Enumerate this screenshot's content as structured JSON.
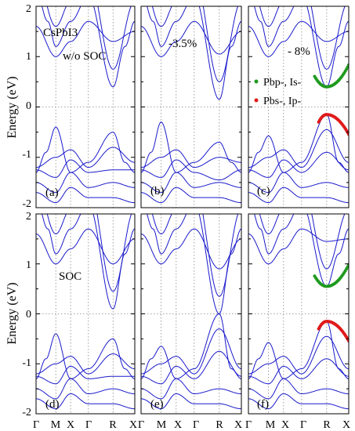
{
  "colors": {
    "band": "#1a1acc",
    "green": "#1f9a1f",
    "red": "#e01a1a",
    "fermi": "#888888",
    "axis": "#000000"
  },
  "chart_data": {
    "type": "line",
    "ylabel": "Energy (eV)",
    "ylim": [
      -2,
      2
    ],
    "yticks": [
      "2",
      "1",
      "0",
      "-1",
      "-2"
    ],
    "kpoints": [
      "Γ",
      "M",
      "X",
      "Γ",
      "R",
      "X"
    ],
    "legend": [
      {
        "label": "Pbp-, Is-",
        "color": "green"
      },
      {
        "label": "Pbs-, Ip-",
        "color": "red"
      }
    ],
    "panels": [
      {
        "label": "(a)",
        "annotation": [
          "CsPbI3",
          "w/o SOC"
        ],
        "cbm": 0.4,
        "vbm": -0.5
      },
      {
        "label": "(b)",
        "annotation": [
          "-3.5%"
        ],
        "cbm": 0.15,
        "vbm": -0.7
      },
      {
        "label": "(c)",
        "annotation": [
          "- 8%"
        ],
        "cbm": 0.4,
        "vbm": -0.15,
        "highlight": true
      },
      {
        "label": "(d)",
        "annotation": [
          "SOC"
        ],
        "cbm": 0.1,
        "vbm": -0.5
      },
      {
        "label": "(e)",
        "annotation": [],
        "cbm": 0.0,
        "vbm": 0.0
      },
      {
        "label": "(f)",
        "annotation": [],
        "cbm": 0.55,
        "vbm": -0.15,
        "highlight": true
      }
    ]
  }
}
